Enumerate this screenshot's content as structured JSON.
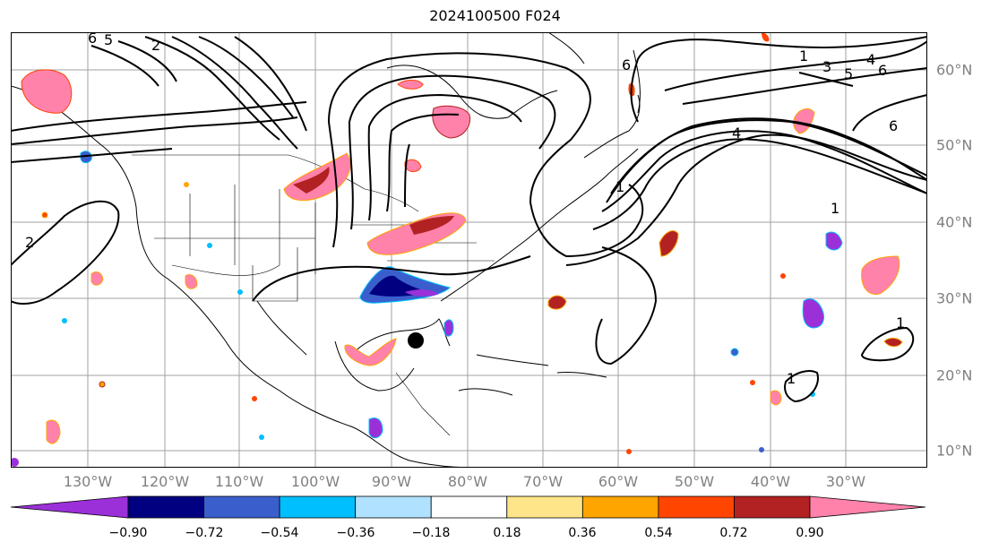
{
  "title": "2024100500 F024",
  "lon_labels": [
    "130°W",
    "120°W",
    "110°W",
    "100°W",
    "90°W",
    "80°W",
    "70°W",
    "60°W",
    "50°W",
    "40°W",
    "30°W"
  ],
  "lat_labels": [
    "60°N",
    "50°N",
    "40°N",
    "30°N",
    "20°N",
    "10°N"
  ],
  "colorbar": {
    "tick_labels": [
      "−0.90",
      "−0.72",
      "−0.54",
      "−0.36",
      "−0.18",
      "0.18",
      "0.36",
      "0.54",
      "0.72",
      "0.90"
    ],
    "colors": [
      "#9b30d9",
      "#000080",
      "#3a5fcd",
      "#00bfff",
      "#b0e2ff",
      "#ffffff",
      "#ffe58a",
      "#ffa500",
      "#ff4500",
      "#b22222",
      "#ff82ab"
    ]
  },
  "contour_labels": [
    "6",
    "5",
    "2",
    "6",
    "1",
    "3",
    "4",
    "5",
    "6",
    "6",
    "4",
    "1",
    "1",
    "2",
    "1",
    "1"
  ],
  "marker": "storm-center-dot"
}
